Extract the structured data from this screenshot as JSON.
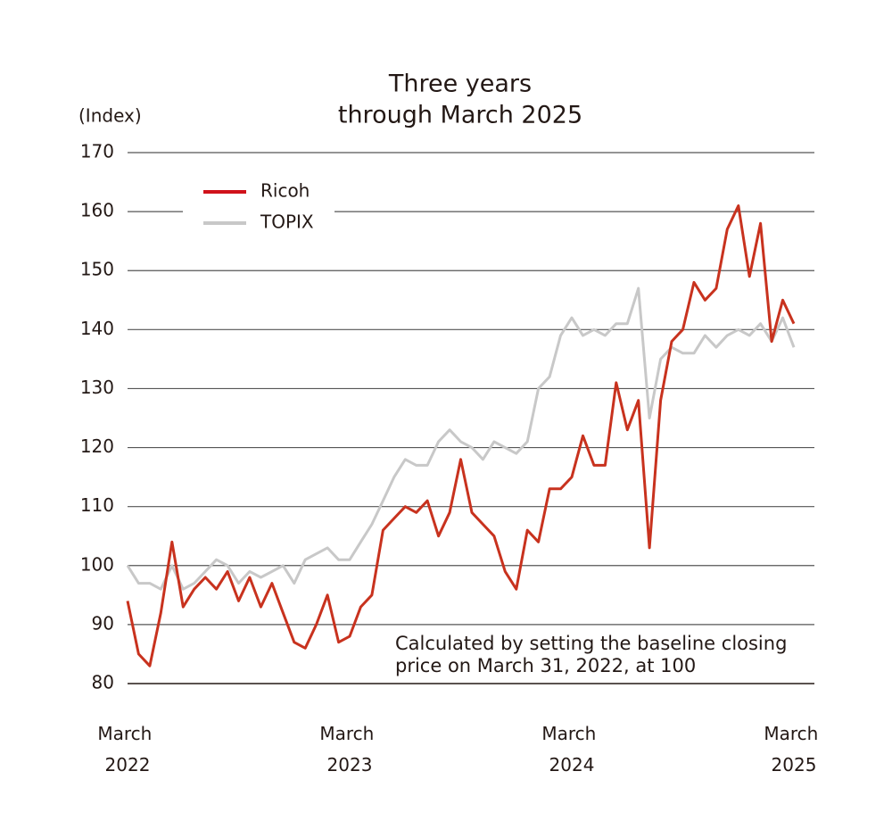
{
  "chart_data": {
    "type": "line",
    "title": [
      "Three years",
      "through March 2025"
    ],
    "y_label": "(Index)",
    "note": [
      "Calculated by setting the baseline closing",
      "price on March 31, 2022, at 100"
    ],
    "categories": [
      "March 2022",
      null,
      null,
      null,
      null,
      null,
      null,
      null,
      null,
      null,
      null,
      null,
      null,
      null,
      null,
      null,
      null,
      null,
      null,
      null,
      "March 2023",
      null,
      null,
      null,
      null,
      null,
      null,
      null,
      null,
      null,
      null,
      null,
      null,
      null,
      null,
      null,
      null,
      null,
      null,
      null,
      "March 2024",
      null,
      null,
      null,
      null,
      null,
      null,
      null,
      null,
      null,
      null,
      null,
      null,
      null,
      null,
      null,
      null,
      null,
      null,
      null,
      "March 2025"
    ],
    "series": [
      {
        "name": "Ricoh",
        "color": "#c8321e",
        "values": [
          94,
          85,
          83,
          92,
          104,
          93,
          96,
          98,
          96,
          99,
          94,
          98,
          93,
          97,
          92,
          87,
          86,
          90,
          95,
          87,
          88,
          93,
          95,
          106,
          108,
          110,
          109,
          111,
          105,
          109,
          118,
          109,
          107,
          105,
          99,
          96,
          106,
          104,
          113,
          113,
          115,
          122,
          117,
          117,
          131,
          123,
          128,
          103,
          128,
          138,
          140,
          148,
          145,
          147,
          157,
          161,
          149,
          158,
          138,
          145,
          141
        ]
      },
      {
        "name": "TOPIX",
        "color": "#c8c8c8",
        "values": [
          100,
          97,
          97,
          96,
          100,
          96,
          97,
          99,
          101,
          100,
          97,
          99,
          98,
          99,
          100,
          97,
          101,
          102,
          103,
          101,
          101,
          104,
          107,
          111,
          115,
          118,
          117,
          117,
          121,
          123,
          121,
          120,
          118,
          121,
          120,
          119,
          121,
          130,
          132,
          139,
          142,
          139,
          140,
          139,
          141,
          141,
          147,
          125,
          135,
          137,
          136,
          136,
          139,
          137,
          139,
          140,
          139,
          141,
          138,
          142,
          137
        ]
      }
    ],
    "legend_colors": [
      "#d0121b",
      "#c8c8c8"
    ],
    "ylim": [
      80,
      170
    ],
    "yticks": [
      80,
      90,
      100,
      110,
      120,
      130,
      140,
      150,
      160,
      170
    ],
    "grid": true
  }
}
